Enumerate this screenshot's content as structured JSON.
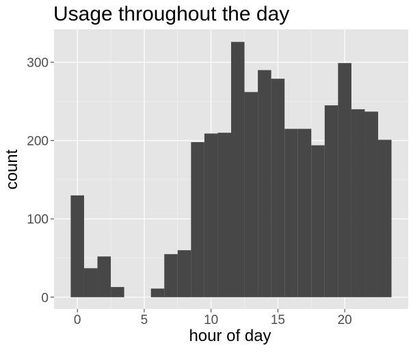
{
  "chart_data": {
    "type": "bar",
    "title": "Usage throughout the day",
    "xlabel": "hour of day",
    "ylabel": "count",
    "x": [
      0,
      1,
      2,
      3,
      4,
      5,
      6,
      7,
      8,
      9,
      10,
      11,
      12,
      13,
      14,
      15,
      16,
      17,
      18,
      19,
      20,
      21,
      22,
      23
    ],
    "values": [
      130,
      37,
      52,
      13,
      0,
      0,
      11,
      55,
      60,
      198,
      209,
      210,
      326,
      262,
      290,
      279,
      215,
      215,
      194,
      245,
      299,
      240,
      237,
      201
    ],
    "xlim": [
      -1.75,
      24.75
    ],
    "ylim": [
      -15,
      342
    ],
    "x_ticks": [
      0,
      5,
      10,
      15,
      20
    ],
    "y_ticks": [
      0,
      100,
      200,
      300
    ],
    "grid": true,
    "colors": {
      "panel": "#e5e5e5",
      "grid_major": "#ffffff",
      "bar": "#474747",
      "tick_text": "#4d4d4d"
    }
  }
}
